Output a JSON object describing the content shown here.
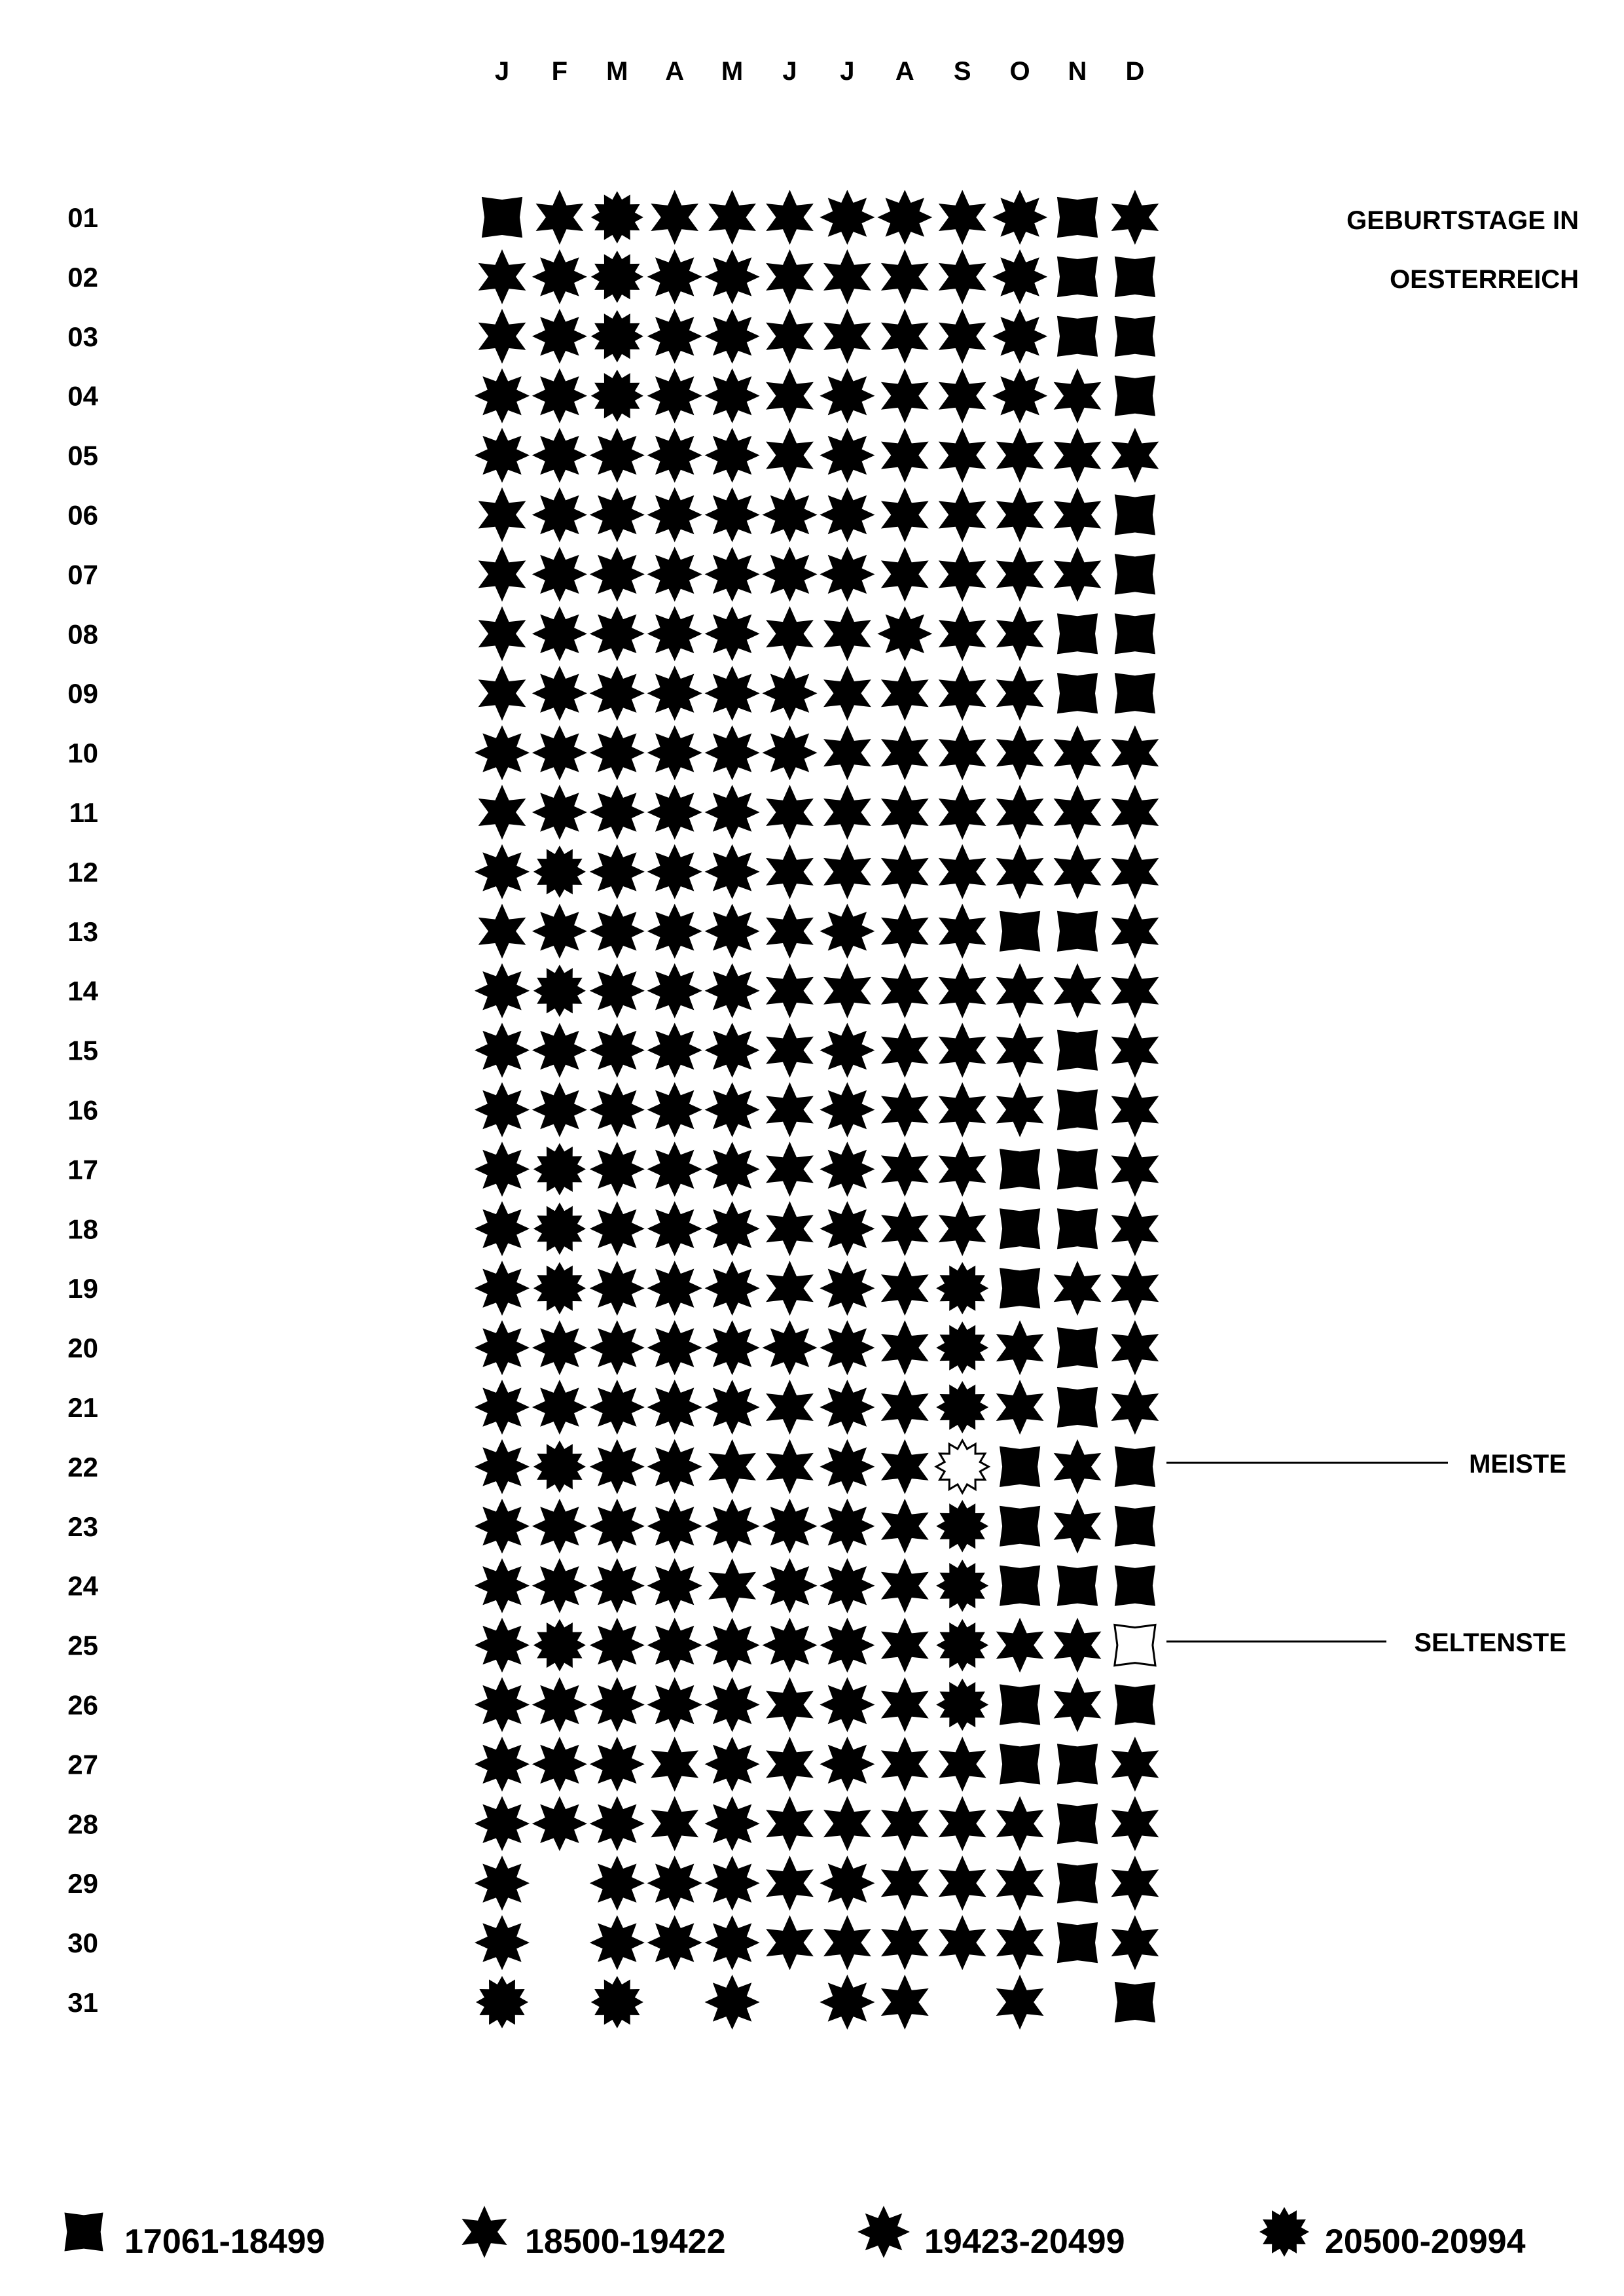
{
  "chart_data": {
    "type": "table",
    "title": [
      "GEBURTSTAGE IN",
      "OESTERREICH"
    ],
    "month_labels": [
      "J",
      "F",
      "M",
      "A",
      "M",
      "J",
      "J",
      "A",
      "S",
      "O",
      "N",
      "D"
    ],
    "day_labels": [
      "01",
      "02",
      "03",
      "04",
      "05",
      "06",
      "07",
      "08",
      "09",
      "10",
      "11",
      "12",
      "13",
      "14",
      "15",
      "16",
      "17",
      "18",
      "19",
      "20",
      "21",
      "22",
      "23",
      "24",
      "25",
      "26",
      "27",
      "28",
      "29",
      "30",
      "31"
    ],
    "legend": [
      {
        "label": "17061-18499",
        "category": 0,
        "shape": "star-4"
      },
      {
        "label": "18500-19422",
        "category": 1,
        "shape": "star-6"
      },
      {
        "label": "19423-20499",
        "category": 2,
        "shape": "star-8"
      },
      {
        "label": "20500-20994",
        "category": 3,
        "shape": "star-12"
      }
    ],
    "categories_by_day": [
      [
        0,
        1,
        3,
        1,
        1,
        1,
        2,
        2,
        1,
        2,
        0,
        1
      ],
      [
        1,
        2,
        3,
        2,
        2,
        1,
        1,
        1,
        1,
        2,
        0,
        0
      ],
      [
        1,
        2,
        3,
        2,
        2,
        1,
        1,
        1,
        1,
        2,
        0,
        0
      ],
      [
        2,
        2,
        3,
        2,
        2,
        1,
        2,
        1,
        1,
        2,
        1,
        0
      ],
      [
        2,
        2,
        2,
        2,
        2,
        1,
        2,
        1,
        1,
        1,
        1,
        1
      ],
      [
        1,
        2,
        2,
        2,
        2,
        2,
        2,
        1,
        1,
        1,
        1,
        0
      ],
      [
        1,
        2,
        2,
        2,
        2,
        2,
        2,
        1,
        1,
        1,
        1,
        0
      ],
      [
        1,
        2,
        2,
        2,
        2,
        1,
        1,
        2,
        1,
        1,
        0,
        0
      ],
      [
        1,
        2,
        2,
        2,
        2,
        2,
        1,
        1,
        1,
        1,
        0,
        0
      ],
      [
        2,
        2,
        2,
        2,
        2,
        2,
        1,
        1,
        1,
        1,
        1,
        1
      ],
      [
        1,
        2,
        2,
        2,
        2,
        1,
        1,
        1,
        1,
        1,
        1,
        1
      ],
      [
        2,
        3,
        2,
        2,
        2,
        1,
        1,
        1,
        1,
        1,
        1,
        1
      ],
      [
        1,
        2,
        2,
        2,
        2,
        1,
        2,
        1,
        1,
        0,
        0,
        1
      ],
      [
        2,
        3,
        2,
        2,
        2,
        1,
        1,
        1,
        1,
        1,
        1,
        1
      ],
      [
        2,
        2,
        2,
        2,
        2,
        1,
        2,
        1,
        1,
        1,
        0,
        1
      ],
      [
        2,
        2,
        2,
        2,
        2,
        1,
        2,
        1,
        1,
        1,
        0,
        1
      ],
      [
        2,
        3,
        2,
        2,
        2,
        1,
        2,
        1,
        1,
        0,
        0,
        1
      ],
      [
        2,
        3,
        2,
        2,
        2,
        1,
        2,
        1,
        1,
        0,
        0,
        1
      ],
      [
        2,
        3,
        2,
        2,
        2,
        1,
        2,
        1,
        3,
        0,
        1,
        1
      ],
      [
        2,
        2,
        2,
        2,
        2,
        2,
        2,
        1,
        3,
        1,
        0,
        1
      ],
      [
        2,
        2,
        2,
        2,
        2,
        1,
        2,
        1,
        3,
        1,
        0,
        1
      ],
      [
        2,
        3,
        2,
        2,
        1,
        1,
        2,
        1,
        3,
        0,
        1,
        0
      ],
      [
        2,
        2,
        2,
        2,
        2,
        2,
        2,
        1,
        3,
        0,
        1,
        0
      ],
      [
        2,
        2,
        2,
        2,
        1,
        2,
        2,
        1,
        3,
        0,
        0,
        0
      ],
      [
        2,
        3,
        2,
        2,
        2,
        2,
        2,
        1,
        3,
        1,
        1,
        0
      ],
      [
        2,
        2,
        2,
        2,
        2,
        1,
        2,
        1,
        3,
        0,
        1,
        0
      ],
      [
        2,
        2,
        2,
        1,
        2,
        1,
        2,
        1,
        1,
        0,
        0,
        1
      ],
      [
        2,
        2,
        2,
        1,
        2,
        1,
        1,
        1,
        1,
        1,
        0,
        1
      ],
      [
        2,
        null,
        2,
        2,
        2,
        1,
        2,
        1,
        1,
        1,
        0,
        1
      ],
      [
        2,
        null,
        2,
        2,
        2,
        1,
        1,
        1,
        1,
        1,
        0,
        1
      ],
      [
        3,
        null,
        3,
        null,
        2,
        null,
        2,
        1,
        null,
        1,
        null,
        0
      ]
    ],
    "highlights": [
      {
        "label": "MEISTE",
        "day": "22",
        "month": "S",
        "note": "outlined star in September"
      },
      {
        "label": "SELTENSTE",
        "day": "25",
        "month": "D"
      }
    ],
    "colors": {
      "fill": "#000000",
      "background": "#ffffff"
    }
  }
}
